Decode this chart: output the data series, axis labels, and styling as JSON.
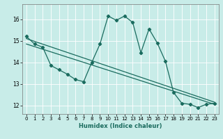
{
  "xlabel": "Humidex (Indice chaleur)",
  "background_color": "#c8ece8",
  "line_color": "#1a6b5e",
  "grid_color": "#ffffff",
  "xlim": [
    -0.5,
    23.5
  ],
  "ylim": [
    11.6,
    16.7
  ],
  "yticks": [
    12,
    13,
    14,
    15,
    16
  ],
  "xticks": [
    0,
    1,
    2,
    3,
    4,
    5,
    6,
    7,
    8,
    9,
    10,
    11,
    12,
    13,
    14,
    15,
    16,
    17,
    18,
    19,
    20,
    21,
    22,
    23
  ],
  "series1_x": [
    0,
    1,
    2,
    3,
    4,
    5,
    6,
    7,
    8,
    9,
    10,
    11,
    12,
    13,
    14,
    15,
    16,
    17,
    18,
    19,
    20,
    21,
    22,
    23
  ],
  "series1_y": [
    15.2,
    14.85,
    14.7,
    13.85,
    13.65,
    13.45,
    13.2,
    13.1,
    14.0,
    14.85,
    16.15,
    15.95,
    16.15,
    15.85,
    14.45,
    15.55,
    14.9,
    14.05,
    12.6,
    12.1,
    12.05,
    11.9,
    12.05,
    12.1
  ],
  "series2_x": [
    0,
    23
  ],
  "series2_y": [
    15.1,
    12.15
  ],
  "series3_x": [
    0,
    23
  ],
  "series3_y": [
    14.85,
    12.05
  ],
  "marker": "D",
  "markersize": 2.2,
  "linewidth": 0.9
}
